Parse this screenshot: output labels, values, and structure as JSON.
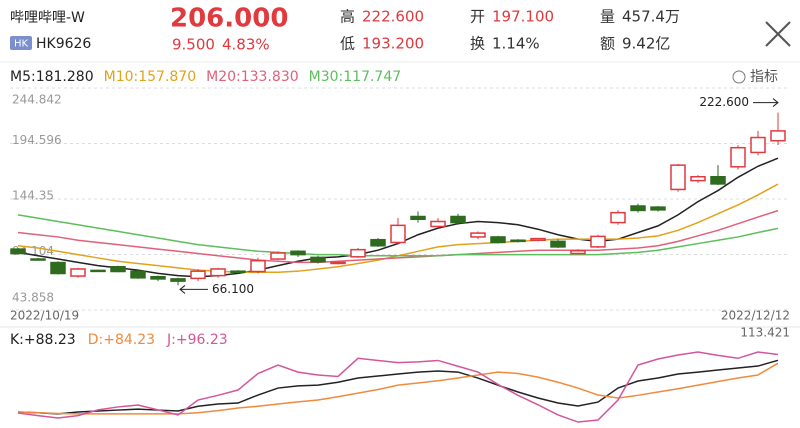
{
  "header": {
    "name": "哔哩哔哩-W",
    "market": "HK",
    "code": "HK9626",
    "price": "206.000",
    "change": "9.500",
    "change_pct": "4.83%",
    "stats": [
      {
        "label": "高",
        "value": "222.600"
      },
      {
        "label": "开",
        "value": "197.100"
      },
      {
        "label": "量",
        "value": "457.4万"
      },
      {
        "label": "低",
        "value": "193.200"
      },
      {
        "label": "换",
        "value": "1.14%"
      },
      {
        "label": "额",
        "value": "9.42亿"
      }
    ],
    "indicator_button": "指标"
  },
  "chart_data": [
    {
      "type": "candlestick",
      "categories": [
        "2022/10/19",
        null,
        null,
        null,
        null,
        null,
        null,
        null,
        null,
        null,
        null,
        null,
        null,
        null,
        null,
        null,
        null,
        null,
        null,
        null,
        null,
        null,
        null,
        null,
        null,
        null,
        null,
        null,
        null,
        null,
        null,
        null,
        null,
        null,
        null,
        null,
        null,
        null,
        "2022/12/12"
      ],
      "open": [
        99,
        90,
        86.8,
        74.6,
        79.7,
        83,
        79,
        74,
        72,
        72.5,
        75,
        79,
        78.7,
        90,
        97,
        91.5,
        86,
        92,
        107.5,
        105,
        128.5,
        119.5,
        128.5,
        110,
        110,
        107,
        107,
        106,
        95,
        101,
        123,
        138,
        137,
        153,
        161,
        164.5,
        173.5,
        186.5,
        197.1
      ],
      "close": [
        95,
        89.5,
        76.9,
        81,
        79.5,
        78.7,
        73,
        72,
        70,
        79,
        81,
        78,
        88.5,
        95.5,
        94,
        87.5,
        87,
        98.5,
        102,
        120.5,
        126,
        124,
        123,
        113.5,
        105,
        106,
        108.5,
        101,
        97.5,
        110.5,
        132,
        134,
        134.5,
        175,
        164.5,
        158,
        190.8,
        200,
        206
      ],
      "high": [
        100,
        91,
        88,
        82,
        80.5,
        84,
        80,
        75,
        73,
        81,
        82,
        80,
        91,
        97,
        98,
        93,
        88,
        100,
        109,
        127,
        133,
        127,
        131,
        115,
        111,
        108,
        109,
        108,
        99,
        112,
        134,
        140,
        138,
        176,
        166,
        175,
        193,
        206,
        222.6
      ],
      "low": [
        94,
        89,
        76,
        73,
        78.5,
        78,
        72,
        70,
        66.1,
        70,
        73,
        77,
        77,
        89,
        92,
        86,
        85,
        91,
        101,
        103,
        123,
        118,
        121,
        108,
        104,
        105,
        106,
        100,
        94,
        100,
        121,
        132,
        133,
        151,
        159,
        157,
        171,
        184,
        193.2
      ],
      "up_color": "#e0393e",
      "down_color": "#2e6b1e",
      "series": [
        {
          "name": "M5:181.280",
          "color": "#222222",
          "values": [
            96,
            93,
            90,
            87,
            84,
            82,
            80,
            77,
            75,
            74,
            75,
            77,
            80,
            84,
            88,
            91,
            92,
            94,
            98,
            104,
            112,
            118,
            122,
            124,
            123,
            121,
            117,
            112,
            108,
            106,
            108,
            114,
            120,
            130,
            142,
            152,
            164,
            174,
            181.28
          ]
        },
        {
          "name": "M10:157.870",
          "color": "#e3a21a",
          "values": [
            102,
            100,
            97,
            94,
            91,
            88,
            86,
            84,
            82,
            80,
            79,
            78,
            78,
            78,
            79,
            81,
            83,
            86,
            89,
            93,
            97,
            101,
            103,
            104,
            105,
            106,
            107,
            108,
            108,
            108,
            108,
            109,
            111,
            116,
            123,
            131,
            139,
            148,
            157.87
          ]
        },
        {
          "name": "M20:133.830",
          "color": "#e0607a",
          "values": [
            114,
            112,
            110,
            107,
            105,
            103,
            101,
            99,
            97,
            95,
            93,
            91,
            89,
            88,
            87,
            87,
            88,
            89,
            90,
            91,
            92,
            93,
            94,
            95,
            96,
            97,
            98,
            98,
            98,
            98,
            99,
            100,
            102,
            106,
            111,
            116,
            122,
            128,
            133.83
          ]
        },
        {
          "name": "M30:117.747",
          "color": "#5cbf5c",
          "values": [
            130,
            127,
            124,
            121,
            118,
            115,
            112,
            109,
            106,
            103,
            101,
            99,
            97,
            96,
            95,
            94,
            94,
            93,
            93,
            93,
            93,
            93,
            94,
            94,
            94,
            94,
            94,
            94,
            94,
            94,
            95,
            96,
            98,
            101,
            104,
            107,
            110,
            114,
            117.747
          ]
        }
      ],
      "annotations": [
        {
          "text": "222.600",
          "at": "high"
        },
        {
          "text": "66.100",
          "at": "low"
        }
      ],
      "ylim": [
        43.858,
        244.842
      ],
      "yticks": [
        43.858,
        94.104,
        144.35,
        194.596,
        244.842
      ],
      "grid": true
    },
    {
      "type": "line",
      "series": [
        {
          "name": "K:+88.23",
          "color": "#222222",
          "values": [
            17,
            16,
            14.5,
            17,
            18.4,
            19.7,
            21,
            19.7,
            18.4,
            25,
            28,
            29.4,
            40.4,
            50,
            53,
            54,
            58,
            63.8,
            66.6,
            69.3,
            72,
            73.5,
            72,
            63.8,
            54,
            44.6,
            36.3,
            29.4,
            25.3,
            30.7,
            50,
            59.7,
            63.8,
            69.3,
            72,
            74.8,
            77.6,
            80.3,
            88.23
          ]
        },
        {
          "name": "D:+84.23",
          "color": "#f08a3c",
          "values": [
            17,
            16,
            15,
            14.5,
            14.5,
            14.5,
            14.5,
            14.5,
            14.5,
            16,
            19,
            22.5,
            25,
            28,
            31,
            33.5,
            38,
            43,
            48,
            54,
            57,
            60,
            63.8,
            68,
            72,
            70,
            65,
            58,
            50,
            40.4,
            36.3,
            40,
            44.6,
            49,
            54,
            59,
            63.8,
            68,
            84.23
          ]
        },
        {
          "name": "J:+96.23",
          "color": "#d4559a",
          "values": [
            15.6,
            12,
            8.7,
            12,
            20,
            24,
            26.6,
            20,
            13,
            33.5,
            40,
            47.3,
            70,
            81.7,
            72,
            68,
            66,
            91,
            88,
            85,
            86,
            88,
            80,
            72,
            55,
            40,
            27,
            13,
            3.2,
            6,
            33.5,
            81.7,
            90,
            95.5,
            99.6,
            95,
            91,
            99.6,
            96.23
          ]
        }
      ],
      "ylim": [
        -5,
        113.421
      ],
      "yticks": [
        113.421
      ]
    }
  ]
}
